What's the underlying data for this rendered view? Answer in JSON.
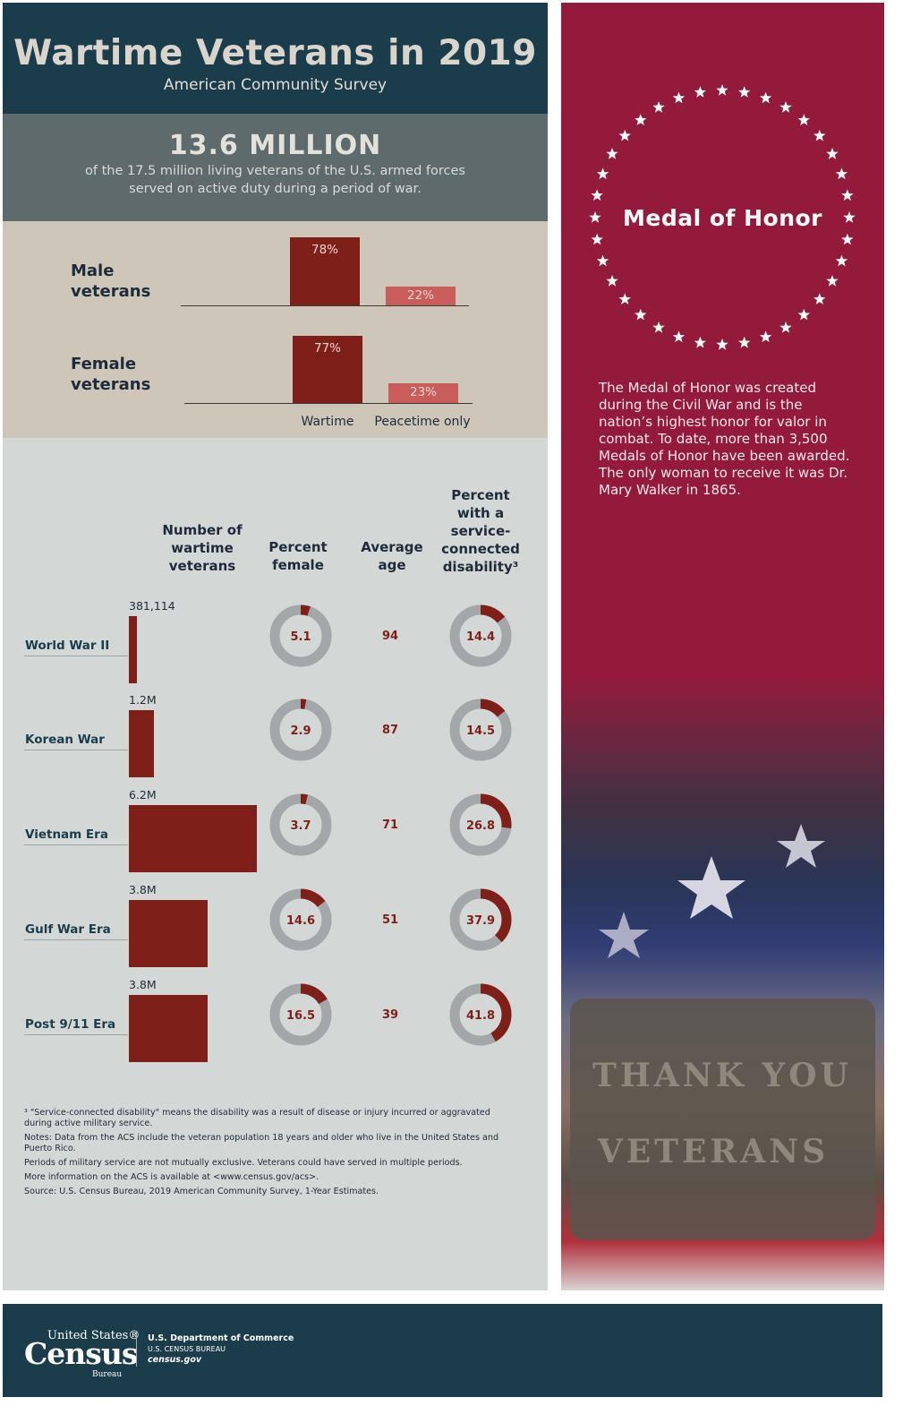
{
  "header": {
    "title": "Wartime Veterans in 2019",
    "subtitle": "American Community Survey"
  },
  "stat": {
    "headline": "13.6 MILLION",
    "line1": "of the 17.5 million living veterans of the U.S. armed forces",
    "line2": "served on active duty during a period of war."
  },
  "colors": {
    "header_bg": "#1b3c4b",
    "stat_bg": "#5e6a6c",
    "gender_bg": "#cdc6b9",
    "table_bg": "#d3d7d5",
    "accent_dark_red": "#7e1f1a",
    "accent_light_red": "#c85d5b",
    "panel_crimson": "#941a3b",
    "donut_gray": "#a3a7a9"
  },
  "medal": {
    "title": "Medal of Honor",
    "text": "The Medal of Honor was created during the Civil War and is the nation’s highest honor for valor in combat. To date, more than 3,500 Medals of Honor have been awarded. The only woman to receive it was Dr. Mary Walker in 1865.",
    "photo_text": [
      "THANK YOU",
      "VETERANS"
    ]
  },
  "footer": {
    "logo_line1": "United States®",
    "logo_line2": "Census",
    "logo_line3": "Bureau",
    "dept_line1": "U.S. Department of Commerce",
    "dept_line2": "U.S. CENSUS BUREAU",
    "dept_line3": "census.gov"
  },
  "notes": [
    "³ \"Service-connected disability\" means the disability was a result of disease or injury incurred or aggravated during active military service.",
    "Notes: Data from the ACS include the veteran population 18 years and older who live in the United States and Puerto Rico.",
    "Periods of military service are not mutually exclusive. Veterans could have served in multiple periods.",
    "More information on the ACS is available at <www.census.gov/acs>.",
    "Source: U.S. Census Bureau, 2019 American Community Survey, 1-Year Estimates."
  ],
  "chart_data": [
    {
      "type": "bar",
      "categories": [
        "Wartime",
        "Peacetime only"
      ],
      "series": [
        {
          "name": "Male veterans",
          "values": [
            78,
            22
          ],
          "labels": [
            "78%",
            "22%"
          ]
        },
        {
          "name": "Female veterans",
          "values": [
            77,
            23
          ],
          "labels": [
            "77%",
            "23%"
          ]
        }
      ],
      "ylim": [
        0,
        100
      ]
    },
    {
      "type": "table",
      "columns": [
        "Number of wartime veterans",
        "Percent female",
        "Average age",
        "Percent with a service-connected disability³"
      ],
      "rows": [
        {
          "label": "World War II",
          "number": 381114,
          "number_label": "381,114",
          "percent_female": 5.1,
          "percent_female_label": "5.1",
          "average_age": 94,
          "age_label": "94",
          "disability": 14.4,
          "disability_label": "14.4"
        },
        {
          "label": "Korean War",
          "number": 1200000,
          "number_label": "1.2M",
          "percent_female": 2.9,
          "percent_female_label": "2.9",
          "average_age": 87,
          "age_label": "87",
          "disability": 14.5,
          "disability_label": "14.5"
        },
        {
          "label": "Vietnam Era",
          "number": 6200000,
          "number_label": "6.2M",
          "percent_female": 3.7,
          "percent_female_label": "3.7",
          "average_age": 71,
          "age_label": "71",
          "disability": 26.8,
          "disability_label": "26.8"
        },
        {
          "label": "Gulf War Era",
          "number": 3800000,
          "number_label": "3.8M",
          "percent_female": 14.6,
          "percent_female_label": "14.6",
          "average_age": 51,
          "age_label": "51",
          "disability": 37.9,
          "disability_label": "37.9"
        },
        {
          "label": "Post 9/11 Era",
          "number": 3800000,
          "number_label": "3.8M",
          "percent_female": 16.5,
          "percent_female_label": "16.5",
          "average_age": 39,
          "age_label": "39",
          "disability": 41.8,
          "disability_label": "41.8"
        }
      ]
    }
  ]
}
